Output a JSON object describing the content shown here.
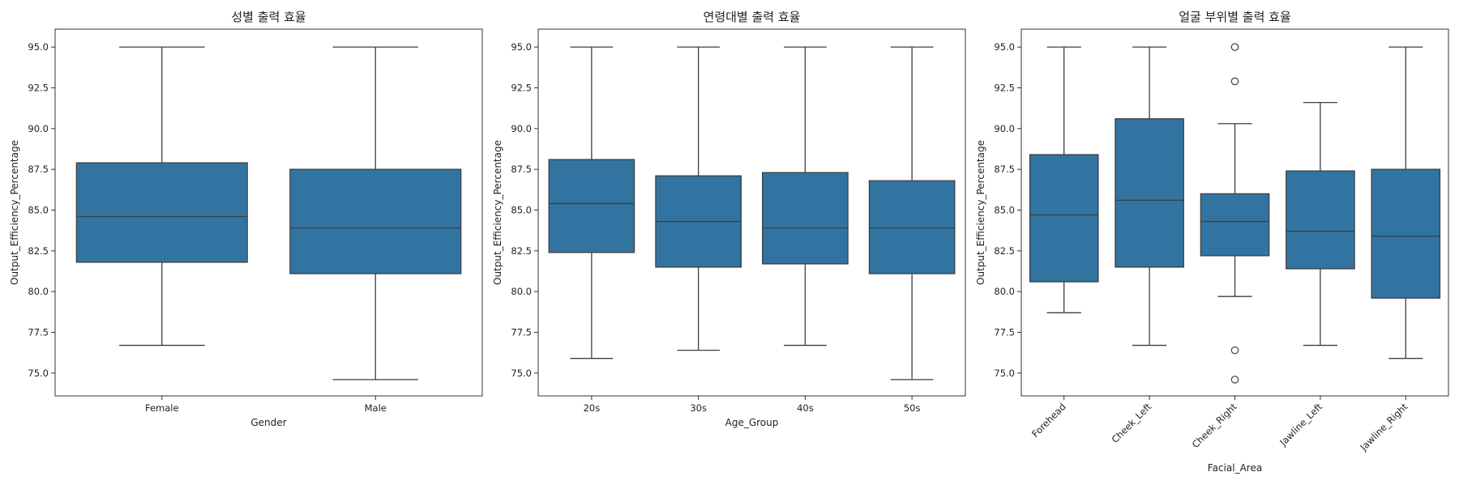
{
  "chart_data": [
    {
      "type": "box",
      "title": "성별 출력 효율",
      "xlabel": "Gender",
      "ylabel": "Output_Efficiency_Percentage",
      "ylim": [
        73.6,
        96.1
      ],
      "yticks": [
        "75.0",
        "77.5",
        "80.0",
        "82.5",
        "85.0",
        "87.5",
        "90.0",
        "92.5",
        "95.0"
      ],
      "box_color": "#3274a1",
      "grid": false,
      "rotate_xticks": false,
      "categories": [
        "Female",
        "Male"
      ],
      "boxes": [
        {
          "whisker_low": 76.7,
          "q1": 81.8,
          "median": 84.6,
          "q3": 87.9,
          "whisker_high": 95.0,
          "outliers": []
        },
        {
          "whisker_low": 74.6,
          "q1": 81.1,
          "median": 83.9,
          "q3": 87.5,
          "whisker_high": 95.0,
          "outliers": []
        }
      ]
    },
    {
      "type": "box",
      "title": "연령대별 출력 효율",
      "xlabel": "Age_Group",
      "ylabel": "Output_Efficiency_Percentage",
      "ylim": [
        73.6,
        96.1
      ],
      "yticks": [
        "75.0",
        "77.5",
        "80.0",
        "82.5",
        "85.0",
        "87.5",
        "90.0",
        "92.5",
        "95.0"
      ],
      "box_color": "#3274a1",
      "grid": false,
      "rotate_xticks": false,
      "categories": [
        "20s",
        "30s",
        "40s",
        "50s"
      ],
      "boxes": [
        {
          "whisker_low": 75.9,
          "q1": 82.4,
          "median": 85.4,
          "q3": 88.1,
          "whisker_high": 95.0,
          "outliers": []
        },
        {
          "whisker_low": 76.4,
          "q1": 81.5,
          "median": 84.3,
          "q3": 87.1,
          "whisker_high": 95.0,
          "outliers": []
        },
        {
          "whisker_low": 76.7,
          "q1": 81.7,
          "median": 83.9,
          "q3": 87.3,
          "whisker_high": 95.0,
          "outliers": []
        },
        {
          "whisker_low": 74.6,
          "q1": 81.1,
          "median": 83.9,
          "q3": 86.8,
          "whisker_high": 95.0,
          "outliers": []
        }
      ]
    },
    {
      "type": "box",
      "title": "얼굴 부위별 출력 효율",
      "xlabel": "Facial_Area",
      "ylabel": "Output_Efficiency_Percentage",
      "ylim": [
        73.6,
        96.1
      ],
      "yticks": [
        "75.0",
        "77.5",
        "80.0",
        "82.5",
        "85.0",
        "87.5",
        "90.0",
        "92.5",
        "95.0"
      ],
      "box_color": "#3274a1",
      "grid": false,
      "rotate_xticks": true,
      "categories": [
        "Forehead",
        "Cheek_Left",
        "Cheek_Right",
        "Jawline_Left",
        "Jawline_Right"
      ],
      "boxes": [
        {
          "whisker_low": 78.7,
          "q1": 80.6,
          "median": 84.7,
          "q3": 88.4,
          "whisker_high": 95.0,
          "outliers": []
        },
        {
          "whisker_low": 76.7,
          "q1": 81.5,
          "median": 85.6,
          "q3": 90.6,
          "whisker_high": 95.0,
          "outliers": []
        },
        {
          "whisker_low": 79.7,
          "q1": 82.2,
          "median": 84.3,
          "q3": 86.0,
          "whisker_high": 90.3,
          "outliers": [
            95.0,
            92.9,
            76.4,
            74.6
          ]
        },
        {
          "whisker_low": 76.7,
          "q1": 81.4,
          "median": 83.7,
          "q3": 87.4,
          "whisker_high": 91.6,
          "outliers": []
        },
        {
          "whisker_low": 75.9,
          "q1": 79.6,
          "median": 83.4,
          "q3": 87.5,
          "whisker_high": 95.0,
          "outliers": []
        }
      ]
    }
  ]
}
